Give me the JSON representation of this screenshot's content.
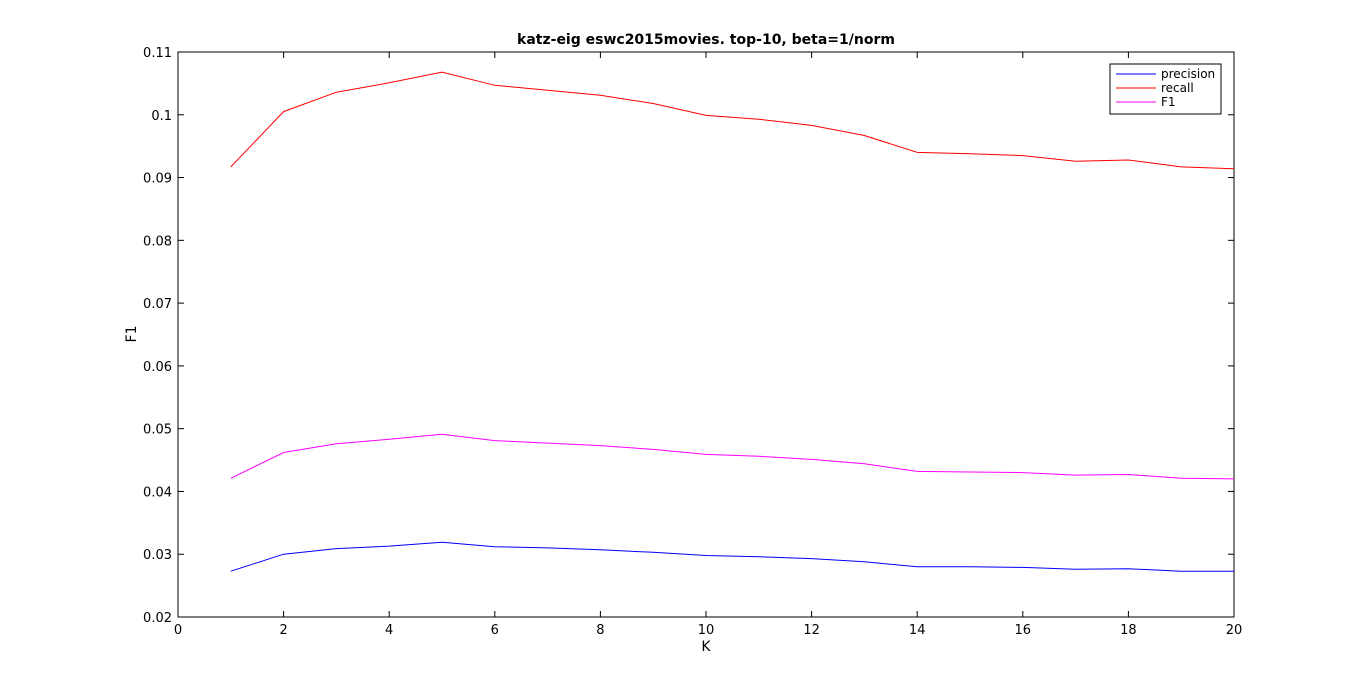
{
  "chart_data": {
    "type": "line",
    "title": "katz-eig eswc2015movies. top-10, beta=1/norm",
    "xlabel": "K",
    "ylabel": "F1",
    "xlim": [
      0,
      20
    ],
    "ylim": [
      0.02,
      0.11
    ],
    "xticks": [
      0,
      2,
      4,
      6,
      8,
      10,
      12,
      14,
      16,
      18,
      20
    ],
    "yticks": [
      0.02,
      0.03,
      0.04,
      0.05,
      0.06,
      0.07,
      0.08,
      0.09,
      0.1,
      0.11
    ],
    "xtick_labels": [
      "0",
      "2",
      "4",
      "6",
      "8",
      "10",
      "12",
      "14",
      "16",
      "18",
      "20"
    ],
    "ytick_labels": [
      "0.02",
      "0.03",
      "0.04",
      "0.05",
      "0.06",
      "0.07",
      "0.08",
      "0.09",
      "0.1",
      "0.11"
    ],
    "grid": false,
    "legend_position": "top-right",
    "x": [
      1,
      2,
      3,
      4,
      5,
      6,
      7,
      8,
      9,
      10,
      11,
      12,
      13,
      14,
      15,
      16,
      17,
      18,
      19,
      20
    ],
    "series": [
      {
        "name": "precision",
        "color": "#0000ff",
        "values": [
          0.0273,
          0.03,
          0.0309,
          0.0313,
          0.0319,
          0.0312,
          0.031,
          0.0307,
          0.0303,
          0.0298,
          0.0296,
          0.0293,
          0.0288,
          0.028,
          0.028,
          0.0279,
          0.0276,
          0.0277,
          0.0273,
          0.0273
        ]
      },
      {
        "name": "recall",
        "color": "#ff0000",
        "values": [
          0.0917,
          0.1005,
          0.1036,
          0.1051,
          0.1068,
          0.1047,
          0.1039,
          0.1031,
          0.1018,
          0.0999,
          0.0993,
          0.0983,
          0.0967,
          0.094,
          0.0938,
          0.0935,
          0.0926,
          0.0928,
          0.0917,
          0.0914
        ]
      },
      {
        "name": "F1",
        "color": "#ff00ff",
        "values": [
          0.0421,
          0.0462,
          0.0476,
          0.0483,
          0.0491,
          0.0481,
          0.0477,
          0.0473,
          0.0467,
          0.0459,
          0.0456,
          0.0451,
          0.0444,
          0.0432,
          0.0431,
          0.043,
          0.0426,
          0.0427,
          0.0421,
          0.042
        ]
      }
    ]
  }
}
